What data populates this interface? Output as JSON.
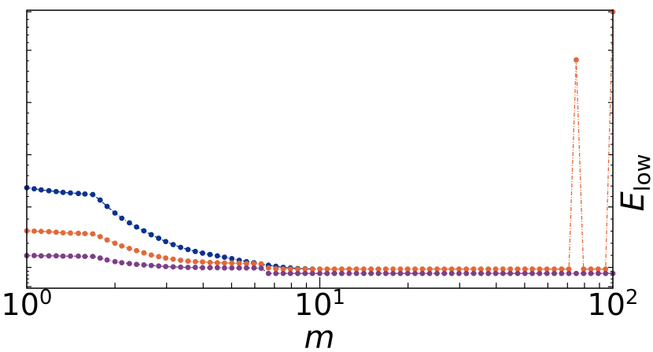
{
  "chart_data": {
    "type": "scatter",
    "title": "",
    "xlabel": "m",
    "ylabel": "E",
    "ylabel_subscript": "low",
    "xscale": "log",
    "xlim": [
      1,
      100
    ],
    "ylim": [
      0,
      1
    ],
    "x_ticks": [
      {
        "value": 1,
        "base": "10",
        "exp": "0"
      },
      {
        "value": 10,
        "base": "10",
        "exp": "1"
      },
      {
        "value": 100,
        "base": "10",
        "exp": "2"
      }
    ],
    "y_tick_values": [
      0,
      0.07,
      0.29,
      0.48,
      0.67,
      0.86,
      1.0
    ],
    "grid": false,
    "series": [
      {
        "color": "#0b318f",
        "x": [
          1.0,
          1.06,
          1.12,
          1.19,
          1.26,
          1.33,
          1.41,
          1.5,
          1.58,
          1.68,
          1.78,
          1.88,
          2.0,
          2.11,
          2.24,
          2.37,
          2.51,
          2.66,
          2.82,
          2.98,
          3.16,
          3.35,
          3.55,
          3.76,
          3.98,
          4.22,
          4.47,
          4.73,
          5.01,
          5.31,
          5.62,
          5.96,
          6.31,
          6.68,
          7.08,
          7.5,
          7.94,
          8.41,
          8.91,
          9.44
        ],
        "y": [
          0.36,
          0.356,
          0.352,
          0.349,
          0.346,
          0.343,
          0.341,
          0.339,
          0.337,
          0.335,
          0.315,
          0.292,
          0.268,
          0.249,
          0.232,
          0.217,
          0.203,
          0.189,
          0.176,
          0.164,
          0.153,
          0.143,
          0.135,
          0.128,
          0.122,
          0.117,
          0.112,
          0.107,
          0.102,
          0.096,
          0.091,
          0.087,
          0.082,
          0.078,
          0.074,
          0.07,
          0.068,
          0.066,
          0.065,
          0.064
        ]
      },
      {
        "color": "#e0693a",
        "x": [
          1.0,
          1.06,
          1.12,
          1.19,
          1.26,
          1.33,
          1.41,
          1.5,
          1.58,
          1.68,
          1.78,
          1.88,
          2.0,
          2.11,
          2.24,
          2.37,
          2.51,
          2.66,
          2.82,
          2.98,
          3.16,
          3.35,
          3.55,
          3.76,
          3.98,
          4.22,
          4.47,
          4.73,
          5.01,
          5.31,
          5.62,
          5.96,
          6.31,
          6.68,
          7.08,
          7.5,
          7.94,
          8.41,
          8.91,
          9.44,
          10.0,
          10.59,
          11.22,
          11.88,
          12.59,
          13.34,
          14.13,
          14.96,
          15.85,
          16.79,
          17.78,
          18.84,
          19.95,
          21.13,
          22.39,
          23.71,
          25.12,
          26.61,
          28.18,
          29.85,
          31.62,
          33.5,
          35.48,
          37.58,
          39.81,
          42.17,
          44.67,
          47.32,
          50.12,
          53.09,
          56.23,
          59.57,
          63.1,
          66.83,
          70.79,
          74.99,
          79.43,
          84.14,
          89.13,
          94.41,
          100.0
        ],
        "y": [
          0.203,
          0.202,
          0.201,
          0.2,
          0.198,
          0.196,
          0.195,
          0.194,
          0.193,
          0.192,
          0.182,
          0.17,
          0.158,
          0.148,
          0.139,
          0.131,
          0.123,
          0.115,
          0.109,
          0.104,
          0.1,
          0.096,
          0.093,
          0.091,
          0.09,
          0.088,
          0.087,
          0.086,
          0.086,
          0.085,
          0.084,
          0.084,
          0.083,
          0.068,
          0.065,
          0.064,
          0.064,
          0.064,
          0.064,
          0.064,
          0.064,
          0.064,
          0.064,
          0.064,
          0.064,
          0.064,
          0.064,
          0.064,
          0.064,
          0.064,
          0.064,
          0.064,
          0.064,
          0.064,
          0.064,
          0.064,
          0.064,
          0.064,
          0.064,
          0.064,
          0.064,
          0.064,
          0.064,
          0.064,
          0.064,
          0.064,
          0.064,
          0.064,
          0.064,
          0.064,
          0.064,
          0.064,
          0.064,
          0.064,
          0.064,
          0.825,
          0.064,
          0.064,
          0.064,
          0.064,
          1.0
        ]
      },
      {
        "color": "#7c3f86",
        "x": [
          1.0,
          1.06,
          1.12,
          1.19,
          1.26,
          1.33,
          1.41,
          1.5,
          1.58,
          1.68,
          1.78,
          1.88,
          2.0,
          2.11,
          2.24,
          2.37,
          2.51,
          2.66,
          2.82,
          2.98,
          3.16,
          3.35,
          3.55,
          3.76,
          3.98,
          4.22,
          4.47,
          4.73,
          5.01,
          5.31,
          5.62,
          5.96,
          6.31,
          6.68,
          7.08,
          7.5,
          7.94,
          8.41,
          8.91,
          9.44,
          10.0,
          10.59,
          11.22,
          11.88,
          12.59,
          13.34,
          14.13,
          14.96,
          15.85,
          16.79,
          17.78,
          18.84,
          19.95,
          21.13,
          22.39,
          23.71,
          25.12,
          26.61,
          28.18,
          29.85,
          31.62,
          33.5,
          35.48,
          37.58,
          39.81,
          42.17,
          44.67,
          47.32,
          50.12,
          53.09,
          56.23,
          59.57,
          63.1,
          66.83,
          70.79,
          74.99,
          79.43,
          84.14,
          89.13,
          94.41,
          100.0
        ],
        "y": [
          0.113,
          0.113,
          0.112,
          0.112,
          0.112,
          0.111,
          0.111,
          0.111,
          0.11,
          0.11,
          0.104,
          0.097,
          0.091,
          0.087,
          0.084,
          0.081,
          0.079,
          0.077,
          0.075,
          0.073,
          0.072,
          0.071,
          0.07,
          0.07,
          0.069,
          0.069,
          0.069,
          0.068,
          0.068,
          0.068,
          0.068,
          0.068,
          0.067,
          0.048,
          0.048,
          0.048,
          0.048,
          0.048,
          0.048,
          0.048,
          0.048,
          0.048,
          0.048,
          0.048,
          0.048,
          0.048,
          0.048,
          0.048,
          0.048,
          0.048,
          0.048,
          0.048,
          0.048,
          0.048,
          0.048,
          0.048,
          0.048,
          0.048,
          0.048,
          0.048,
          0.048,
          0.048,
          0.048,
          0.048,
          0.048,
          0.048,
          0.048,
          0.048,
          0.048,
          0.048,
          0.048,
          0.048,
          0.048,
          0.048,
          0.048,
          0.048,
          0.048,
          0.048,
          0.048,
          0.048,
          0.048
        ]
      }
    ]
  }
}
